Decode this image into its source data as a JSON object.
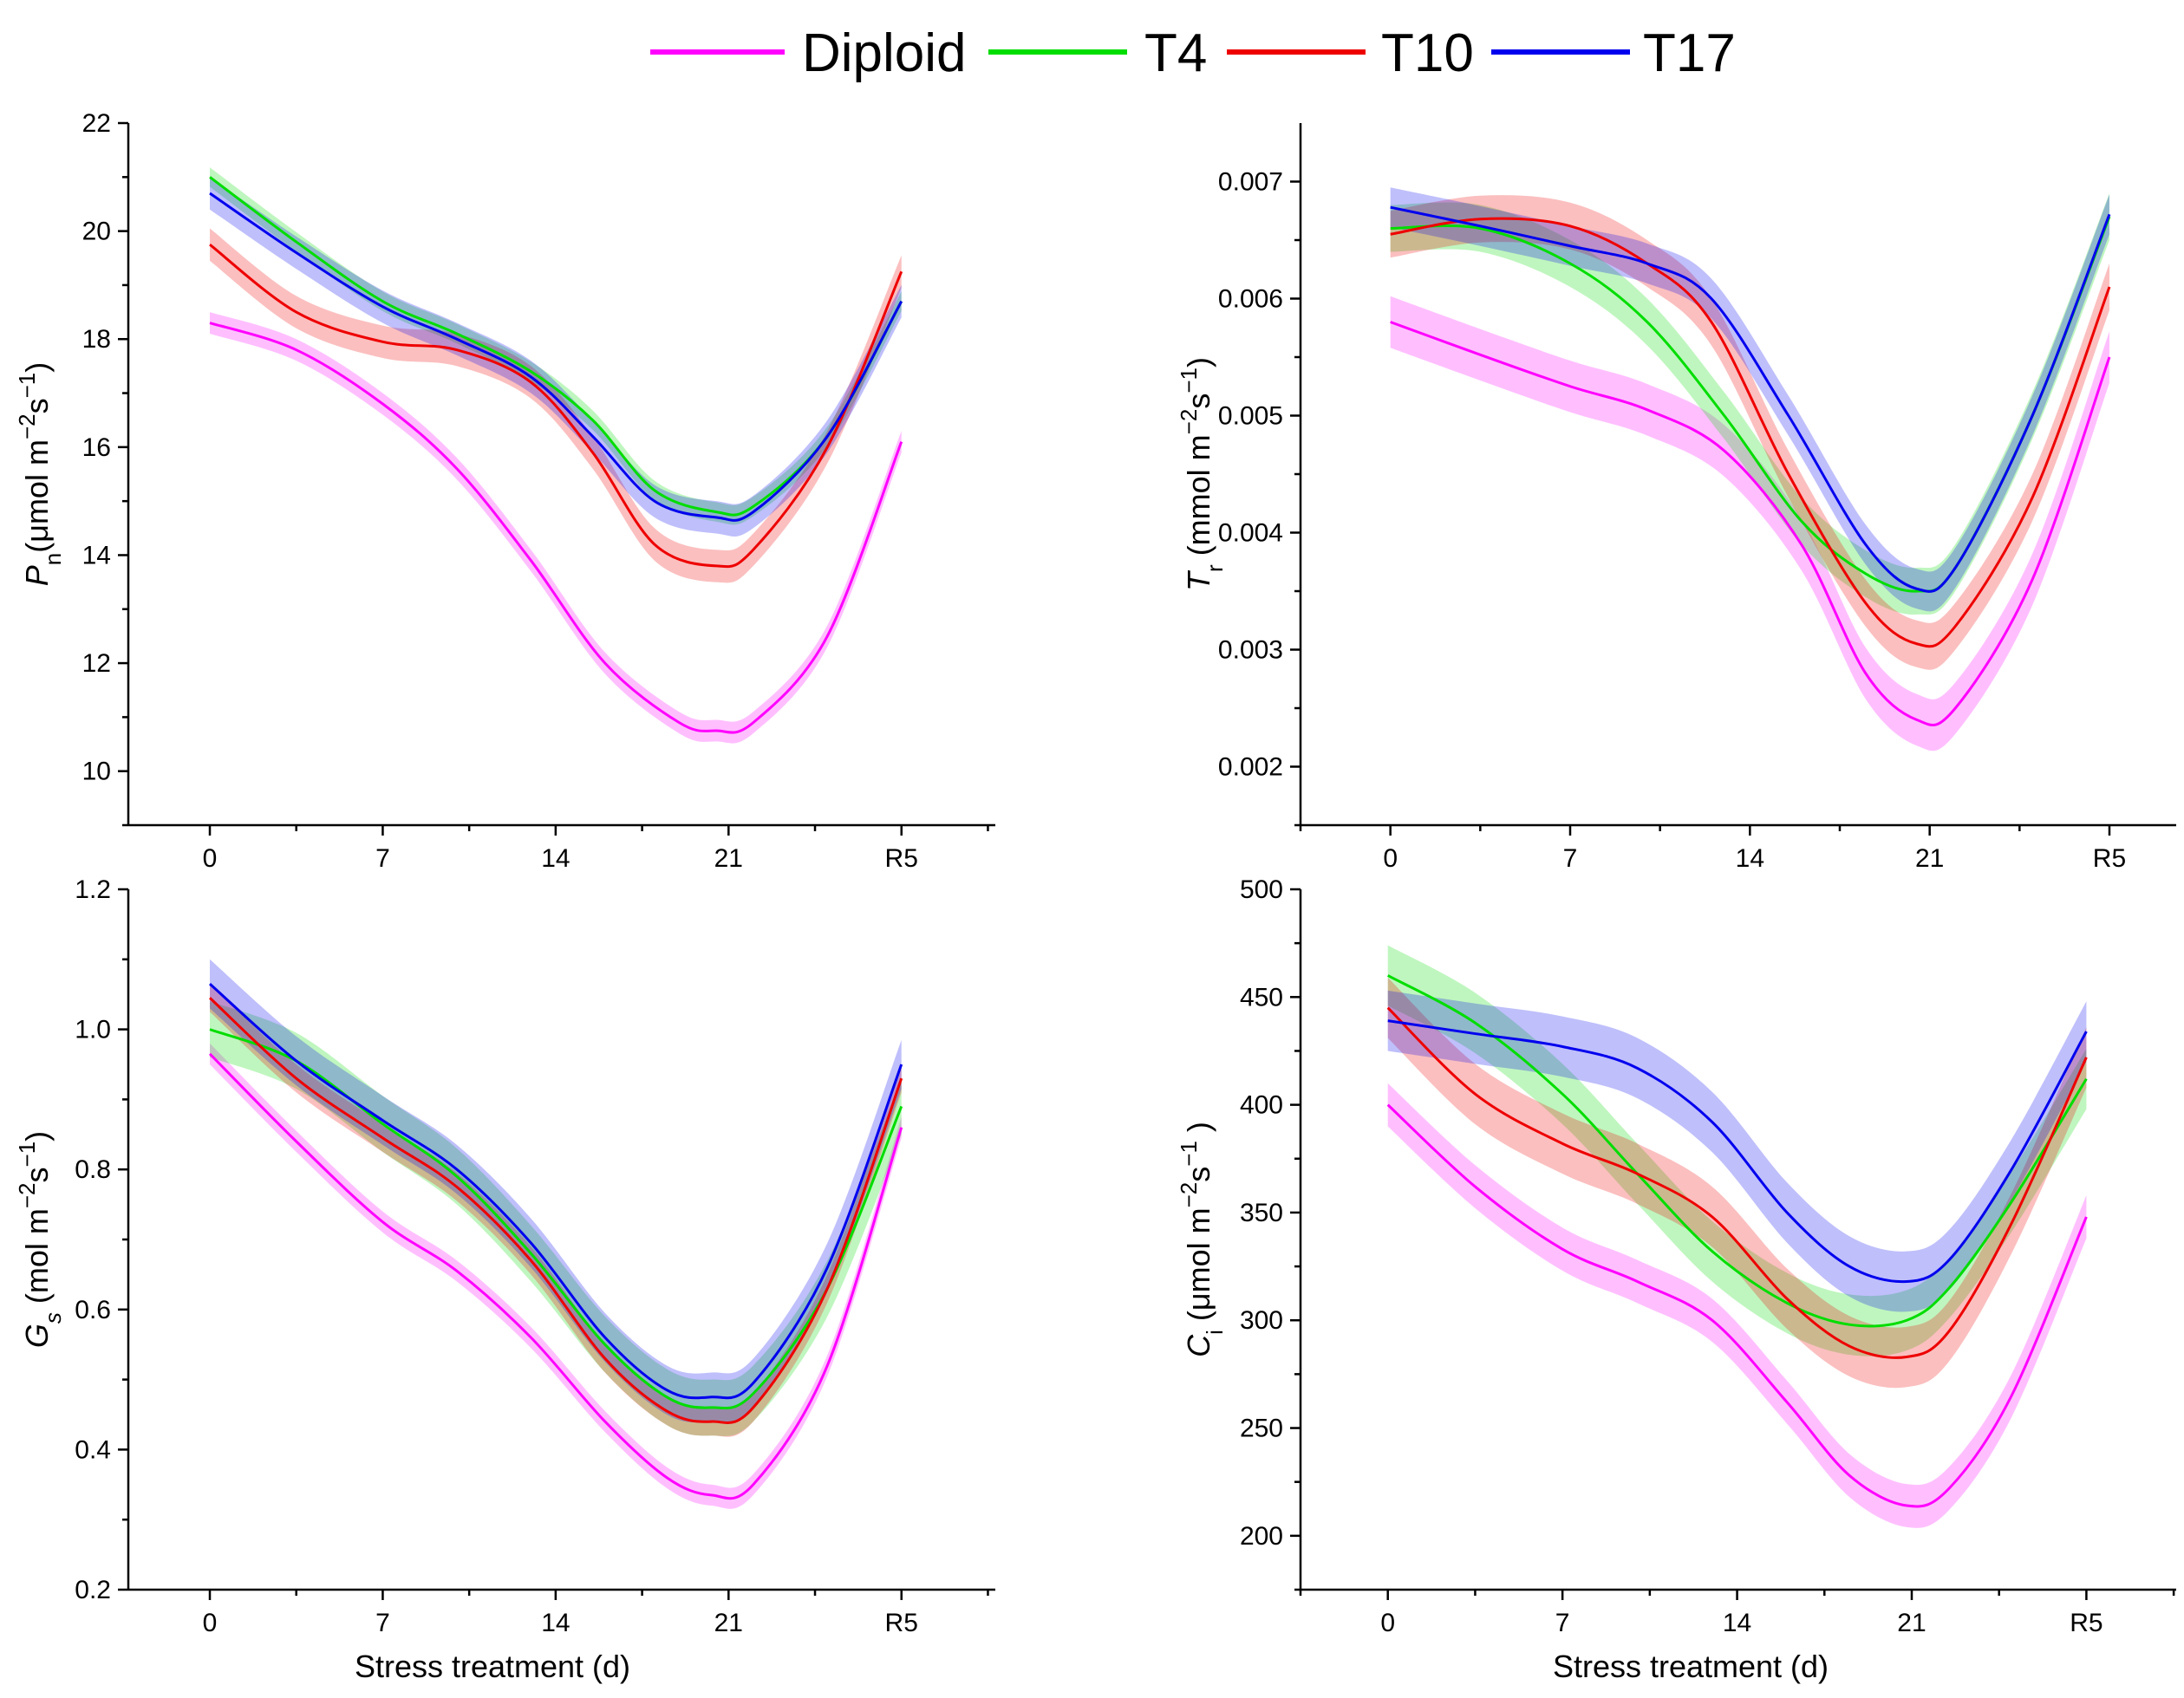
{
  "colors": {
    "Diploid": "#ff00ff",
    "T4": "#00dd00",
    "T10": "#ee0000",
    "T17": "#0000ee"
  },
  "legend": {
    "items": [
      "Diploid",
      "T4",
      "T10",
      "T17"
    ]
  },
  "chart_data": [
    {
      "id": "pn",
      "type": "line",
      "title": "",
      "xlabel": "Stress treatment (d)",
      "ylabel_main": "P",
      "ylabel_sub": "n",
      "ylabel_rest": "(μmol m",
      "ylabel_sup1": "−2",
      "ylabel_mid": "s",
      "ylabel_sup2": "−1",
      "ylabel_end": ")",
      "categories": [
        "0",
        "7",
        "14",
        "21",
        "R5"
      ],
      "x_range": [
        -3.3,
        31.8
      ],
      "x_positions": [
        0,
        7,
        14,
        21,
        28
      ],
      "ylim": [
        9,
        22
      ],
      "yticks": [
        10,
        12,
        14,
        16,
        18,
        20,
        22
      ],
      "ytick_labels": [
        "10",
        "12",
        "14",
        "16",
        "18",
        "20",
        "22"
      ],
      "series": [
        {
          "name": "Diploid",
          "band": 0.2,
          "points": [
            [
              0,
              18.3
            ],
            [
              3.5,
              17.8
            ],
            [
              7,
              16.8
            ],
            [
              10,
              15.6
            ],
            [
              13,
              13.9
            ],
            [
              16,
              12.0
            ],
            [
              19,
              10.9
            ],
            [
              20.5,
              10.75
            ],
            [
              22,
              10.9
            ],
            [
              25,
              12.5
            ],
            [
              28,
              16.1
            ]
          ]
        },
        {
          "name": "T4",
          "band": 0.18,
          "points": [
            [
              0,
              21.0
            ],
            [
              3.5,
              19.8
            ],
            [
              7,
              18.7
            ],
            [
              10,
              18.1
            ],
            [
              13,
              17.4
            ],
            [
              15.5,
              16.5
            ],
            [
              18,
              15.2
            ],
            [
              20.5,
              14.8
            ],
            [
              22,
              14.9
            ],
            [
              25,
              16.2
            ],
            [
              28,
              18.7
            ]
          ]
        },
        {
          "name": "T10",
          "band": 0.3,
          "points": [
            [
              0,
              19.75
            ],
            [
              3.5,
              18.5
            ],
            [
              7,
              17.95
            ],
            [
              10,
              17.8
            ],
            [
              13,
              17.2
            ],
            [
              15.5,
              15.9
            ],
            [
              18,
              14.2
            ],
            [
              20.5,
              13.8
            ],
            [
              22,
              14.1
            ],
            [
              25,
              16.0
            ],
            [
              28,
              19.25
            ]
          ]
        },
        {
          "name": "T17",
          "band": 0.3,
          "points": [
            [
              0,
              20.7
            ],
            [
              3.5,
              19.6
            ],
            [
              7,
              18.6
            ],
            [
              10,
              18.0
            ],
            [
              13,
              17.3
            ],
            [
              15.5,
              16.2
            ],
            [
              18,
              15.0
            ],
            [
              20.5,
              14.7
            ],
            [
              22,
              14.8
            ],
            [
              25,
              16.2
            ],
            [
              28,
              18.7
            ]
          ]
        }
      ]
    },
    {
      "id": "tr",
      "type": "line",
      "title": "",
      "xlabel": "",
      "ylabel_main": "T",
      "ylabel_sub": "r",
      "ylabel_rest": " (mmol m",
      "ylabel_sup1": "−2",
      "ylabel_mid": "s",
      "ylabel_sup2": "−1",
      "ylabel_end": ")",
      "categories": [
        "0",
        "7",
        "14",
        "21",
        "R5"
      ],
      "x_range": [
        -3.5,
        30.6
      ],
      "x_positions": [
        0,
        7,
        14,
        21,
        28
      ],
      "ylim": [
        0.0015,
        0.0075
      ],
      "yticks": [
        0.002,
        0.003,
        0.004,
        0.005,
        0.006,
        0.007
      ],
      "ytick_labels": [
        "0.002",
        "0.003",
        "0.004",
        "0.005",
        "0.006",
        "0.007"
      ],
      "series": [
        {
          "name": "Diploid",
          "band": 0.00022,
          "points": [
            [
              0,
              0.0058
            ],
            [
              3.5,
              0.00552
            ],
            [
              7,
              0.00525
            ],
            [
              10,
              0.00505
            ],
            [
              13,
              0.0047
            ],
            [
              16,
              0.0039
            ],
            [
              18.5,
              0.0028
            ],
            [
              20.5,
              0.0024
            ],
            [
              22,
              0.0025
            ],
            [
              25,
              0.0036
            ],
            [
              28,
              0.0055
            ]
          ]
        },
        {
          "name": "T4",
          "band": 0.0002,
          "points": [
            [
              0,
              0.0066
            ],
            [
              3.5,
              0.0066
            ],
            [
              7,
              0.0063
            ],
            [
              10,
              0.0058
            ],
            [
              13,
              0.005
            ],
            [
              16,
              0.0041
            ],
            [
              18.5,
              0.00365
            ],
            [
              20.5,
              0.0035
            ],
            [
              22,
              0.0037
            ],
            [
              25,
              0.005
            ],
            [
              28,
              0.0067
            ]
          ]
        },
        {
          "name": "T10",
          "band": 0.0002,
          "points": [
            [
              0,
              0.00655
            ],
            [
              3.5,
              0.00668
            ],
            [
              7,
              0.00662
            ],
            [
              10,
              0.0063
            ],
            [
              12.5,
              0.0058
            ],
            [
              15.5,
              0.0045
            ],
            [
              18.5,
              0.0034
            ],
            [
              20.5,
              0.00305
            ],
            [
              22,
              0.0032
            ],
            [
              25,
              0.0043
            ],
            [
              28,
              0.0061
            ]
          ]
        },
        {
          "name": "T17",
          "band": 0.00017,
          "points": [
            [
              0,
              0.00678
            ],
            [
              3.5,
              0.00662
            ],
            [
              7,
              0.00645
            ],
            [
              10,
              0.0063
            ],
            [
              12.5,
              0.006
            ],
            [
              15.5,
              0.005
            ],
            [
              18.5,
              0.0039
            ],
            [
              20.5,
              0.00352
            ],
            [
              22,
              0.0037
            ],
            [
              25,
              0.005
            ],
            [
              28,
              0.00672
            ]
          ]
        }
      ]
    },
    {
      "id": "gs",
      "type": "line",
      "title": "",
      "xlabel": "",
      "ylabel_main": "G",
      "ylabel_sub": "s",
      "ylabel_rest": " (mol m",
      "ylabel_sup1": "−2",
      "ylabel_mid": "s",
      "ylabel_sup2": "−1",
      "ylabel_end": ")",
      "categories": [
        "0",
        "7",
        "14",
        "21",
        "R5"
      ],
      "x_range": [
        -3.3,
        31.8
      ],
      "x_positions": [
        0,
        7,
        14,
        21,
        28
      ],
      "ylim": [
        0.2,
        1.2
      ],
      "yticks": [
        0.2,
        0.4,
        0.6,
        0.8,
        1.0,
        1.2
      ],
      "ytick_labels": [
        "0.2",
        "0.4",
        "0.6",
        "0.8",
        "1.0",
        "1.2"
      ],
      "series": [
        {
          "name": "Diploid",
          "band": 0.015,
          "points": [
            [
              0,
              0.965
            ],
            [
              3.5,
              0.84
            ],
            [
              7,
              0.725
            ],
            [
              10,
              0.655
            ],
            [
              13,
              0.56
            ],
            [
              16,
              0.44
            ],
            [
              18.5,
              0.36
            ],
            [
              20.3,
              0.335
            ],
            [
              22,
              0.35
            ],
            [
              25,
              0.52
            ],
            [
              28,
              0.86
            ]
          ]
        },
        {
          "name": "T4",
          "band": 0.04,
          "points": [
            [
              0,
              1.0
            ],
            [
              3.5,
              0.955
            ],
            [
              7,
              0.865
            ],
            [
              10,
              0.79
            ],
            [
              13,
              0.68
            ],
            [
              16,
              0.55
            ],
            [
              18.5,
              0.475
            ],
            [
              20.3,
              0.46
            ],
            [
              22,
              0.48
            ],
            [
              25,
              0.63
            ],
            [
              28,
              0.89
            ]
          ]
        },
        {
          "name": "T10",
          "band": 0.02,
          "points": [
            [
              0,
              1.045
            ],
            [
              3.5,
              0.93
            ],
            [
              7,
              0.845
            ],
            [
              10,
              0.775
            ],
            [
              13,
              0.67
            ],
            [
              16,
              0.53
            ],
            [
              18.5,
              0.455
            ],
            [
              20.3,
              0.44
            ],
            [
              22,
              0.46
            ],
            [
              25,
              0.63
            ],
            [
              28,
              0.93
            ]
          ]
        },
        {
          "name": "T17",
          "band": 0.035,
          "points": [
            [
              0,
              1.065
            ],
            [
              3.5,
              0.955
            ],
            [
              7,
              0.87
            ],
            [
              10,
              0.8
            ],
            [
              13,
              0.695
            ],
            [
              16,
              0.56
            ],
            [
              18.5,
              0.485
            ],
            [
              20.3,
              0.475
            ],
            [
              22,
              0.495
            ],
            [
              25,
              0.66
            ],
            [
              28,
              0.95
            ]
          ]
        }
      ]
    },
    {
      "id": "ci",
      "type": "line",
      "title": "",
      "xlabel": "Stress treatment (d)",
      "ylabel_main": "C",
      "ylabel_sub": "i",
      "ylabel_rest": " (μmol m",
      "ylabel_sup1": "−2",
      "ylabel_mid": "s",
      "ylabel_sup2": "−1",
      "ylabel_end": " )",
      "categories": [
        "0",
        "7",
        "14",
        "21",
        "R5"
      ],
      "x_range": [
        -3.5,
        31.6
      ],
      "x_positions": [
        0,
        7,
        14,
        21,
        28
      ],
      "ylim": [
        175,
        500
      ],
      "yticks": [
        200,
        250,
        300,
        350,
        400,
        450,
        500
      ],
      "ytick_labels": [
        "200",
        "250",
        "300",
        "350",
        "400",
        "450",
        "500"
      ],
      "series": [
        {
          "name": "Diploid",
          "band": 10,
          "points": [
            [
              0,
              400
            ],
            [
              3.5,
              362
            ],
            [
              7,
              333
            ],
            [
              10,
              318
            ],
            [
              13,
              300
            ],
            [
              16,
              262
            ],
            [
              18.5,
              228
            ],
            [
              20.8,
              214
            ],
            [
              22.5,
              222
            ],
            [
              25,
              265
            ],
            [
              28,
              348
            ]
          ]
        },
        {
          "name": "T4",
          "band": 14,
          "points": [
            [
              0,
              460
            ],
            [
              3.5,
              438
            ],
            [
              7,
              405
            ],
            [
              10,
              368
            ],
            [
              13,
              332
            ],
            [
              16,
              308
            ],
            [
              18.5,
              298
            ],
            [
              20.8,
              300
            ],
            [
              22.5,
              315
            ],
            [
              25,
              355
            ],
            [
              28,
              412
            ]
          ]
        },
        {
          "name": "T10",
          "band": 14,
          "points": [
            [
              0,
              445
            ],
            [
              3.5,
              405
            ],
            [
              7,
              382
            ],
            [
              10,
              368
            ],
            [
              13,
              348
            ],
            [
              16,
              310
            ],
            [
              18.5,
              288
            ],
            [
              20.8,
              283
            ],
            [
              22.5,
              295
            ],
            [
              25,
              345
            ],
            [
              28,
              422
            ]
          ]
        },
        {
          "name": "T17",
          "band": 14,
          "points": [
            [
              0,
              439
            ],
            [
              3.5,
              433
            ],
            [
              7,
              427
            ],
            [
              10,
              417
            ],
            [
              13,
              392
            ],
            [
              16,
              350
            ],
            [
              18.5,
              325
            ],
            [
              20.8,
              318
            ],
            [
              22.5,
              328
            ],
            [
              25,
              370
            ],
            [
              28,
              434
            ]
          ]
        }
      ]
    }
  ]
}
